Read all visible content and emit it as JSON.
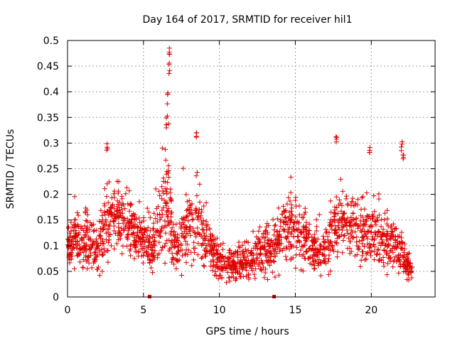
{
  "chart_data": {
    "type": "scatter",
    "title": "Day 164 of 2017, SRMTID for receiver hil1",
    "xlabel": "GPS time / hours",
    "ylabel": "SRMTID / TECUs",
    "xlim": [
      0,
      24.2
    ],
    "ylim": [
      0,
      0.5
    ],
    "xticks": [
      0,
      5,
      10,
      15,
      20
    ],
    "xtick_labels": [
      "0",
      "5",
      "10",
      "15",
      "20"
    ],
    "yticks": [
      0,
      0.05,
      0.1,
      0.15,
      0.2,
      0.25,
      0.3,
      0.35,
      0.4,
      0.45,
      0.5
    ],
    "ytick_labels": [
      "0",
      "0.05",
      "0.1",
      "0.15",
      "0.2",
      "0.25",
      "0.3",
      "0.35",
      "0.4",
      "0.45",
      "0.5"
    ],
    "grid": true,
    "marker": "+",
    "color": "#e00000",
    "data_gaps_x": [
      5.4,
      13.6
    ],
    "profile": {
      "x": [
        0,
        0.5,
        1,
        1.5,
        2,
        2.5,
        3,
        3.5,
        4,
        4.5,
        5,
        5.5,
        6,
        6.3,
        6.6,
        6.9,
        7.2,
        7.5,
        8,
        8.5,
        9,
        9.5,
        10,
        10.5,
        11,
        11.5,
        12,
        12.5,
        13,
        13.5,
        14,
        14.5,
        15,
        15.5,
        16,
        16.5,
        17,
        17.5,
        18,
        18.5,
        19,
        19.5,
        20,
        20.5,
        21,
        21.5,
        22,
        22.3,
        22.7
      ],
      "center": [
        0.1,
        0.12,
        0.11,
        0.1,
        0.09,
        0.13,
        0.16,
        0.15,
        0.14,
        0.13,
        0.11,
        0.1,
        0.12,
        0.17,
        0.2,
        0.12,
        0.1,
        0.11,
        0.14,
        0.16,
        0.12,
        0.09,
        0.07,
        0.065,
        0.06,
        0.065,
        0.075,
        0.08,
        0.09,
        0.09,
        0.12,
        0.14,
        0.13,
        0.12,
        0.1,
        0.09,
        0.09,
        0.13,
        0.15,
        0.14,
        0.14,
        0.13,
        0.12,
        0.11,
        0.11,
        0.1,
        0.08,
        0.06,
        0.05
      ],
      "spread": [
        0.04,
        0.05,
        0.06,
        0.05,
        0.05,
        0.07,
        0.07,
        0.06,
        0.06,
        0.05,
        0.05,
        0.05,
        0.07,
        0.1,
        0.14,
        0.06,
        0.05,
        0.06,
        0.07,
        0.08,
        0.06,
        0.04,
        0.035,
        0.03,
        0.03,
        0.035,
        0.04,
        0.045,
        0.05,
        0.05,
        0.06,
        0.07,
        0.06,
        0.06,
        0.05,
        0.045,
        0.05,
        0.07,
        0.07,
        0.07,
        0.07,
        0.07,
        0.06,
        0.06,
        0.06,
        0.05,
        0.045,
        0.035,
        0.03
      ]
    },
    "peaks": [
      {
        "x": 2.6,
        "y": 0.31
      },
      {
        "x": 6.5,
        "y": 0.35
      },
      {
        "x": 6.6,
        "y": 0.4
      },
      {
        "x": 6.7,
        "y": 0.46
      },
      {
        "x": 6.72,
        "y": 0.49
      },
      {
        "x": 8.5,
        "y": 0.33
      },
      {
        "x": 17.7,
        "y": 0.32
      },
      {
        "x": 19.9,
        "y": 0.3
      },
      {
        "x": 22.0,
        "y": 0.31
      },
      {
        "x": 22.1,
        "y": 0.28
      }
    ]
  }
}
